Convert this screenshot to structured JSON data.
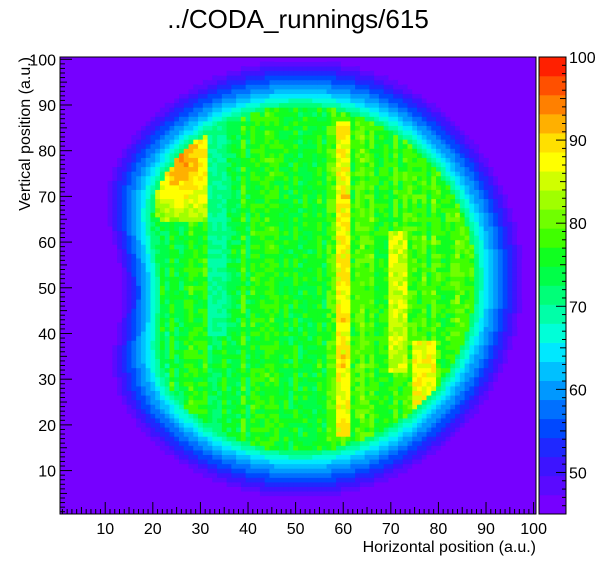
{
  "page_title": "../CODA_runnings/615",
  "chart_data": {
    "type": "heatmap",
    "title": "../CODA_runnings/615",
    "xlabel": "Horizontal position (a.u.)",
    "ylabel": "Vertical position (a.u.)",
    "xlim": [
      1,
      100
    ],
    "ylim": [
      1,
      100
    ],
    "zlim": [
      45,
      100
    ],
    "bins": [
      100,
      100
    ],
    "x_ticks": [
      10,
      20,
      30,
      40,
      50,
      60,
      70,
      80,
      90,
      100
    ],
    "y_ticks": [
      10,
      20,
      30,
      40,
      50,
      60,
      70,
      80,
      90,
      100
    ],
    "z_ticks": [
      50,
      60,
      70,
      80,
      90,
      100
    ],
    "palette": [
      "#7600ff",
      "#5a0aff",
      "#3d14ff",
      "#1f28ff",
      "#0048ff",
      "#0070ff",
      "#0098ff",
      "#00c0ff",
      "#00e8ff",
      "#00ffd8",
      "#00ffa8",
      "#00ff78",
      "#00ff48",
      "#10ff20",
      "#40ff00",
      "#70ff00",
      "#a0ff00",
      "#d0ff00",
      "#ffff00",
      "#ffe000",
      "#ffb000",
      "#ff8000",
      "#ff5000",
      "#ff2000"
    ],
    "background_value": 45,
    "rim_values": {
      "outer": 52,
      "inner": 62
    },
    "beam_region": {
      "shape": "ellipse",
      "center": [
        51,
        52
      ],
      "radius": [
        40,
        41
      ],
      "left_notch_depth": 8,
      "description_regions": [
        {
          "name": "hot-spot-upper-left",
          "x_range": [
            14,
            32
          ],
          "y_range": [
            65,
            88
          ],
          "value": 94
        },
        {
          "name": "bright-column-60",
          "x_range": [
            59,
            61
          ],
          "y_range": [
            18,
            86
          ],
          "value": 88
        },
        {
          "name": "bright-column-72",
          "x_range": [
            70,
            73
          ],
          "y_range": [
            32,
            62
          ],
          "value": 85
        },
        {
          "name": "bright-column-77",
          "x_range": [
            75,
            79
          ],
          "y_range": [
            20,
            38
          ],
          "value": 87
        },
        {
          "name": "dark-gap-33",
          "x_range": [
            32,
            35
          ],
          "y_range": [
            40,
            92
          ],
          "value": 70
        }
      ]
    }
  }
}
